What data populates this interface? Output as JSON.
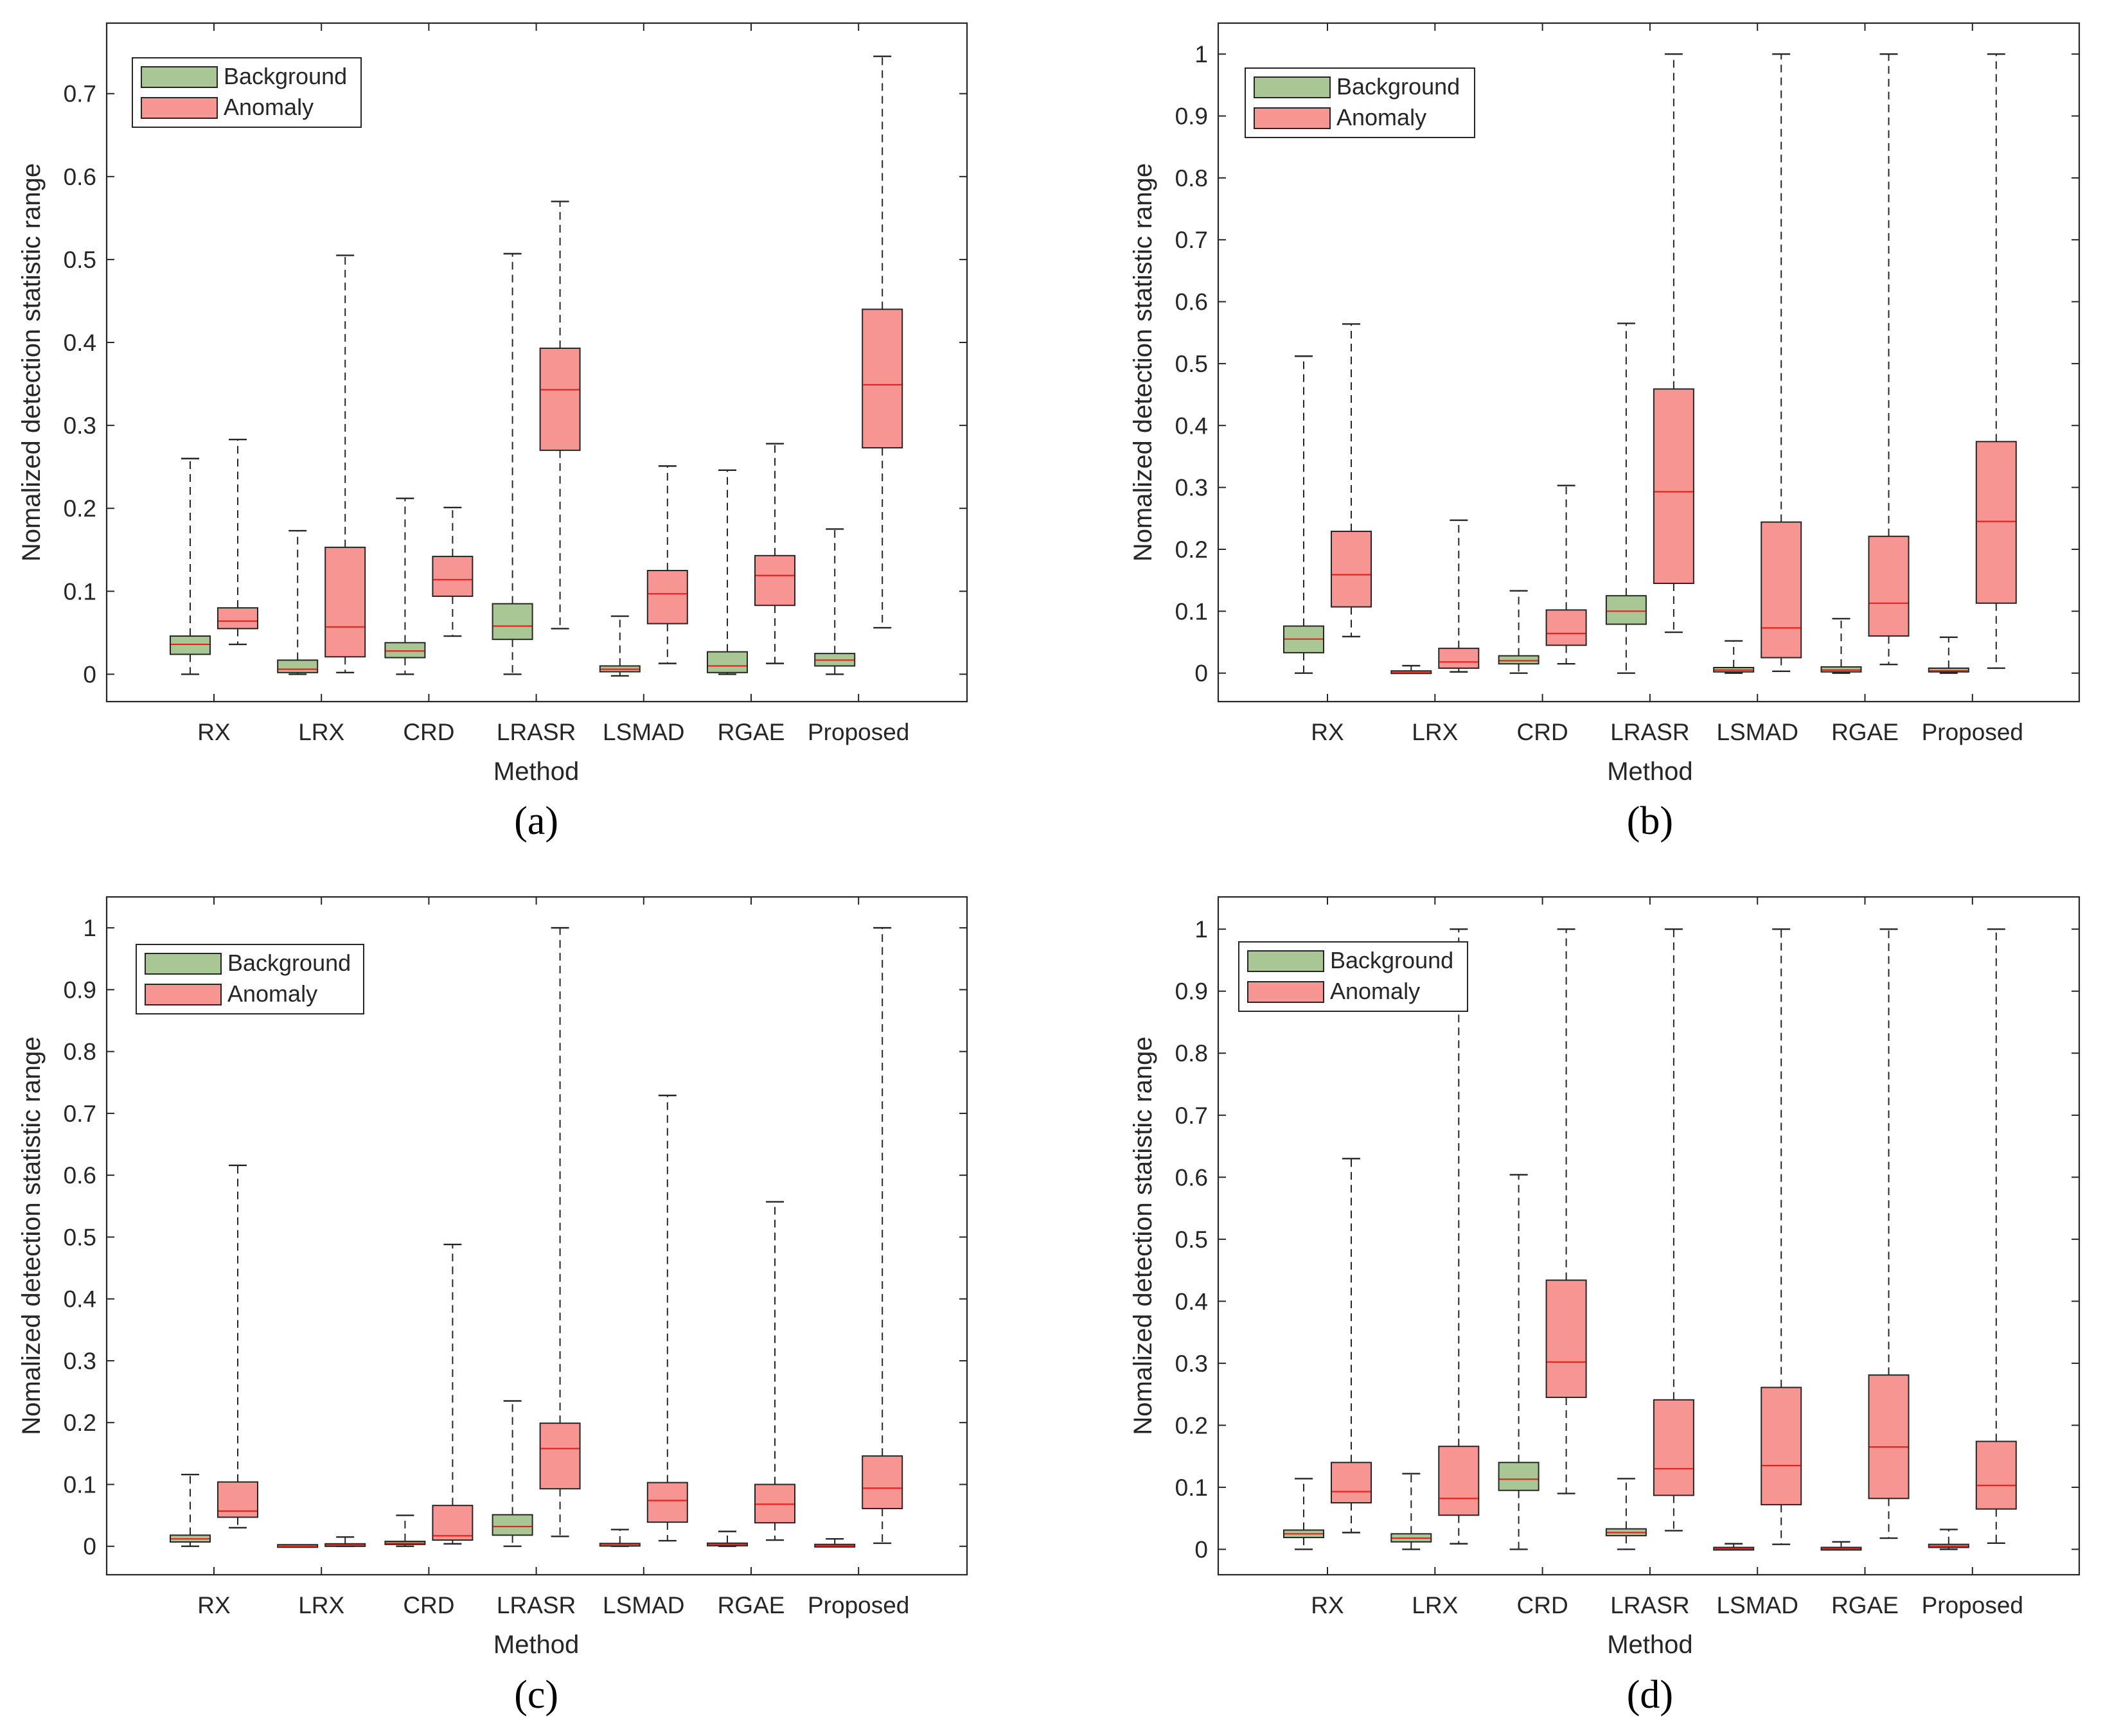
{
  "figure": {
    "colors": {
      "background_fill": "#a9c795",
      "anomaly_fill": "#f79593",
      "median": "#e8221c",
      "axis": "#262626",
      "whisker": "#262626"
    }
  },
  "chart_data": [
    {
      "type": "boxplot",
      "caption": "(a)",
      "xlabel": "Method",
      "ylabel": "Nomalized detection statistic range",
      "ylim": [
        -0.033,
        0.785
      ],
      "yticks": [
        0,
        0.1,
        0.2,
        0.3,
        0.4,
        0.5,
        0.6,
        0.7
      ],
      "ytick_labels": [
        "0",
        "0.1",
        "0.2",
        "0.3",
        "0.4",
        "0.5",
        "0.6",
        "0.7"
      ],
      "categories": [
        "RX",
        "LRX",
        "CRD",
        "LRASR",
        "LSMAD",
        "RGAE",
        "Proposed"
      ],
      "legend": {
        "position": "top-left",
        "entries": [
          "Background",
          "Anomaly"
        ]
      },
      "series": [
        {
          "name": "Background",
          "boxes": [
            {
              "min": 0.0,
              "q1": 0.024,
              "median": 0.036,
              "q3": 0.046,
              "max": 0.26
            },
            {
              "min": 0.0,
              "q1": 0.002,
              "median": 0.006,
              "q3": 0.017,
              "max": 0.173
            },
            {
              "min": 0.0,
              "q1": 0.02,
              "median": 0.028,
              "q3": 0.038,
              "max": 0.212
            },
            {
              "min": 0.0,
              "q1": 0.042,
              "median": 0.058,
              "q3": 0.085,
              "max": 0.507
            },
            {
              "min": -0.002,
              "q1": 0.003,
              "median": 0.006,
              "q3": 0.01,
              "max": 0.07
            },
            {
              "min": 0.0,
              "q1": 0.002,
              "median": 0.01,
              "q3": 0.027,
              "max": 0.246
            },
            {
              "min": 0.0,
              "q1": 0.01,
              "median": 0.017,
              "q3": 0.025,
              "max": 0.175
            }
          ]
        },
        {
          "name": "Anomaly",
          "boxes": [
            {
              "min": 0.036,
              "q1": 0.055,
              "median": 0.064,
              "q3": 0.08,
              "max": 0.283
            },
            {
              "min": 0.002,
              "q1": 0.021,
              "median": 0.057,
              "q3": 0.153,
              "max": 0.505
            },
            {
              "min": 0.046,
              "q1": 0.094,
              "median": 0.114,
              "q3": 0.142,
              "max": 0.201
            },
            {
              "min": 0.055,
              "q1": 0.27,
              "median": 0.343,
              "q3": 0.393,
              "max": 0.57
            },
            {
              "min": 0.013,
              "q1": 0.061,
              "median": 0.097,
              "q3": 0.125,
              "max": 0.251
            },
            {
              "min": 0.013,
              "q1": 0.083,
              "median": 0.119,
              "q3": 0.143,
              "max": 0.278
            },
            {
              "min": 0.056,
              "q1": 0.273,
              "median": 0.349,
              "q3": 0.44,
              "max": 0.745
            }
          ]
        }
      ]
    },
    {
      "type": "boxplot",
      "caption": "(b)",
      "xlabel": "Method",
      "ylabel": "Nomalized detection statistic range",
      "ylim": [
        -0.046,
        1.05
      ],
      "yticks": [
        0,
        0.1,
        0.2,
        0.3,
        0.4,
        0.5,
        0.6,
        0.7,
        0.8,
        0.9,
        1
      ],
      "ytick_labels": [
        "0",
        "0.1",
        "0.2",
        "0.3",
        "0.4",
        "0.5",
        "0.6",
        "0.7",
        "0.8",
        "0.9",
        "1"
      ],
      "categories": [
        "RX",
        "LRX",
        "CRD",
        "LRASR",
        "LSMAD",
        "RGAE",
        "Proposed"
      ],
      "legend": {
        "position": "top-left",
        "entries": [
          "Background",
          "Anomaly"
        ]
      },
      "series": [
        {
          "name": "Background",
          "boxes": [
            {
              "min": 0.0,
              "q1": 0.033,
              "median": 0.055,
              "q3": 0.076,
              "max": 0.512
            },
            {
              "min": 0.0,
              "q1": 0.0,
              "median": 0.001,
              "q3": 0.003,
              "max": 0.012
            },
            {
              "min": 0.0,
              "q1": 0.015,
              "median": 0.02,
              "q3": 0.028,
              "max": 0.133
            },
            {
              "min": 0.0,
              "q1": 0.079,
              "median": 0.1,
              "q3": 0.125,
              "max": 0.565
            },
            {
              "min": 0.0,
              "q1": 0.002,
              "median": 0.005,
              "q3": 0.009,
              "max": 0.052
            },
            {
              "min": 0.0,
              "q1": 0.002,
              "median": 0.005,
              "q3": 0.01,
              "max": 0.088
            },
            {
              "min": 0.0,
              "q1": 0.002,
              "median": 0.004,
              "q3": 0.008,
              "max": 0.058
            }
          ]
        },
        {
          "name": "Anomaly",
          "boxes": [
            {
              "min": 0.059,
              "q1": 0.107,
              "median": 0.159,
              "q3": 0.229,
              "max": 0.564
            },
            {
              "min": 0.002,
              "q1": 0.008,
              "median": 0.018,
              "q3": 0.04,
              "max": 0.247
            },
            {
              "min": 0.015,
              "q1": 0.045,
              "median": 0.064,
              "q3": 0.102,
              "max": 0.303
            },
            {
              "min": 0.066,
              "q1": 0.145,
              "median": 0.293,
              "q3": 0.459,
              "max": 1.0
            },
            {
              "min": 0.003,
              "q1": 0.025,
              "median": 0.073,
              "q3": 0.244,
              "max": 1.0
            },
            {
              "min": 0.014,
              "q1": 0.06,
              "median": 0.113,
              "q3": 0.221,
              "max": 1.0
            },
            {
              "min": 0.008,
              "q1": 0.113,
              "median": 0.245,
              "q3": 0.374,
              "max": 1.0
            }
          ]
        }
      ]
    },
    {
      "type": "boxplot",
      "caption": "(c)",
      "xlabel": "Method",
      "ylabel": "Nomalized detection statistic range",
      "ylim": [
        -0.046,
        1.05
      ],
      "yticks": [
        0,
        0.1,
        0.2,
        0.3,
        0.4,
        0.5,
        0.6,
        0.7,
        0.8,
        0.9,
        1
      ],
      "ytick_labels": [
        "0",
        "0.1",
        "0.2",
        "0.3",
        "0.4",
        "0.5",
        "0.6",
        "0.7",
        "0.8",
        "0.9",
        "1"
      ],
      "categories": [
        "RX",
        "LRX",
        "CRD",
        "LRASR",
        "LSMAD",
        "RGAE",
        "Proposed"
      ],
      "legend": {
        "position": "top-left",
        "entries": [
          "Background",
          "Anomaly"
        ]
      },
      "series": [
        {
          "name": "Background",
          "boxes": [
            {
              "min": 0.0,
              "q1": 0.007,
              "median": 0.012,
              "q3": 0.018,
              "max": 0.116
            },
            {
              "min": 0.0,
              "q1": 0.0,
              "median": 0.0,
              "q3": 0.001,
              "max": 0.001
            },
            {
              "min": 0.0,
              "q1": 0.003,
              "median": 0.005,
              "q3": 0.008,
              "max": 0.05
            },
            {
              "min": 0.0,
              "q1": 0.018,
              "median": 0.032,
              "q3": 0.051,
              "max": 0.235
            },
            {
              "min": 0.0,
              "q1": 0.001,
              "median": 0.002,
              "q3": 0.004,
              "max": 0.027
            },
            {
              "min": 0.0,
              "q1": 0.001,
              "median": 0.003,
              "q3": 0.005,
              "max": 0.024
            },
            {
              "min": 0.0,
              "q1": 0.0,
              "median": 0.001,
              "q3": 0.002,
              "max": 0.012
            }
          ]
        },
        {
          "name": "Anomaly",
          "boxes": [
            {
              "min": 0.03,
              "q1": 0.047,
              "median": 0.057,
              "q3": 0.104,
              "max": 0.616
            },
            {
              "min": 0.0,
              "q1": 0.0,
              "median": 0.002,
              "q3": 0.004,
              "max": 0.015
            },
            {
              "min": 0.004,
              "q1": 0.01,
              "median": 0.017,
              "q3": 0.066,
              "max": 0.488
            },
            {
              "min": 0.016,
              "q1": 0.093,
              "median": 0.158,
              "q3": 0.199,
              "max": 1.0
            },
            {
              "min": 0.009,
              "q1": 0.039,
              "median": 0.074,
              "q3": 0.103,
              "max": 0.729
            },
            {
              "min": 0.01,
              "q1": 0.038,
              "median": 0.068,
              "q3": 0.1,
              "max": 0.557
            },
            {
              "min": 0.005,
              "q1": 0.061,
              "median": 0.094,
              "q3": 0.146,
              "max": 1.0
            }
          ]
        }
      ]
    },
    {
      "type": "boxplot",
      "caption": "(d)",
      "xlabel": "Method",
      "ylabel": "Nomalized detection statistic range",
      "ylim": [
        -0.041,
        1.052
      ],
      "yticks": [
        0,
        0.1,
        0.2,
        0.3,
        0.4,
        0.5,
        0.6,
        0.7,
        0.8,
        0.9,
        1
      ],
      "ytick_labels": [
        "0",
        "0.1",
        "0.2",
        "0.3",
        "0.4",
        "0.5",
        "0.6",
        "0.7",
        "0.8",
        "0.9",
        "1"
      ],
      "categories": [
        "RX",
        "LRX",
        "CRD",
        "LRASR",
        "LSMAD",
        "RGAE",
        "Proposed"
      ],
      "legend": {
        "position": "top-left",
        "entries": [
          "Background",
          "Anomaly"
        ]
      },
      "series": [
        {
          "name": "Background",
          "boxes": [
            {
              "min": 0.0,
              "q1": 0.019,
              "median": 0.025,
              "q3": 0.031,
              "max": 0.114
            },
            {
              "min": 0.0,
              "q1": 0.012,
              "median": 0.018,
              "q3": 0.025,
              "max": 0.122
            },
            {
              "min": 0.0,
              "q1": 0.095,
              "median": 0.113,
              "q3": 0.14,
              "max": 0.604
            },
            {
              "min": 0.0,
              "q1": 0.022,
              "median": 0.027,
              "q3": 0.033,
              "max": 0.114
            },
            {
              "min": 0.0,
              "q1": 0.0,
              "median": 0.001,
              "q3": 0.002,
              "max": 0.009
            },
            {
              "min": 0.0,
              "q1": 0.0,
              "median": 0.001,
              "q3": 0.002,
              "max": 0.012
            },
            {
              "min": 0.0,
              "q1": 0.003,
              "median": 0.005,
              "q3": 0.008,
              "max": 0.032
            }
          ]
        },
        {
          "name": "Anomaly",
          "boxes": [
            {
              "min": 0.027,
              "q1": 0.075,
              "median": 0.093,
              "q3": 0.14,
              "max": 0.63
            },
            {
              "min": 0.009,
              "q1": 0.055,
              "median": 0.082,
              "q3": 0.166,
              "max": 1.0
            },
            {
              "min": 0.09,
              "q1": 0.245,
              "median": 0.302,
              "q3": 0.434,
              "max": 1.0
            },
            {
              "min": 0.03,
              "q1": 0.087,
              "median": 0.13,
              "q3": 0.241,
              "max": 1.0
            },
            {
              "min": 0.008,
              "q1": 0.072,
              "median": 0.135,
              "q3": 0.261,
              "max": 1.0
            },
            {
              "min": 0.018,
              "q1": 0.082,
              "median": 0.165,
              "q3": 0.281,
              "max": 1.0
            },
            {
              "min": 0.01,
              "q1": 0.065,
              "median": 0.103,
              "q3": 0.174,
              "max": 1.0
            }
          ]
        }
      ]
    }
  ]
}
